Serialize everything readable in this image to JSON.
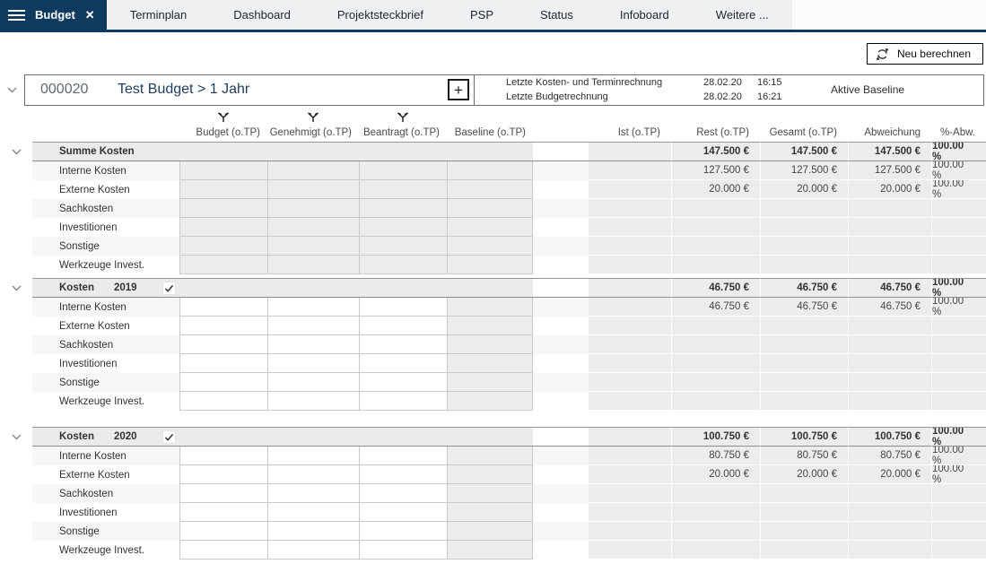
{
  "tabbar": {
    "active_tab": "Budget",
    "close_icon": "✕",
    "tabs": [
      "Terminplan",
      "Dashboard",
      "Projektsteckbrief",
      "PSP",
      "Status",
      "Infoboard",
      "Weitere ..."
    ]
  },
  "toolbar": {
    "recalculate_label": "Neu berechnen"
  },
  "project": {
    "number": "000020",
    "title": "Test Budget > 1 Jahr",
    "add_button": "+",
    "info": [
      {
        "label": "Letzte Kosten- und Terminrechnung",
        "date": "28.02.20",
        "time": "16:15"
      },
      {
        "label": "Letzte Budgetrechnung",
        "date": "28.02.20",
        "time": "16:21"
      }
    ],
    "baseline_label": "Aktive Baseline"
  },
  "colors": {
    "accent": "#0e3a5f",
    "group_row": "#ebebeb",
    "readonly_cell": "#ececec"
  },
  "table": {
    "left_columns": [
      {
        "label": "Budget (o.TP)",
        "filter": true
      },
      {
        "label": "Genehmigt (o.TP)",
        "filter": true
      },
      {
        "label": "Beantragt (o.TP)",
        "filter": true
      },
      {
        "label": "Baseline (o.TP)",
        "filter": false
      }
    ],
    "right_columns": [
      "Ist (o.TP)",
      "Rest (o.TP)",
      "Gesamt (o.TP)",
      "Abweichung",
      "%-Abw."
    ],
    "groups": [
      {
        "label": "Summe Kosten",
        "year": "",
        "has_checkbox": false,
        "editable": false,
        "totals": [
          "",
          "147.500 €",
          "147.500 €",
          "147.500 €",
          "100.00 %"
        ],
        "rows": [
          {
            "label": "Interne Kosten",
            "values": [
              "",
              "127.500 €",
              "127.500 €",
              "127.500 €",
              "100.00 %"
            ]
          },
          {
            "label": "Externe Kosten",
            "values": [
              "",
              "20.000 €",
              "20.000 €",
              "20.000 €",
              "100.00 %"
            ]
          },
          {
            "label": "Sachkosten",
            "values": [
              "",
              "",
              "",
              "",
              ""
            ]
          },
          {
            "label": "Investitionen",
            "values": [
              "",
              "",
              "",
              "",
              ""
            ]
          },
          {
            "label": "Sonstige",
            "values": [
              "",
              "",
              "",
              "",
              ""
            ]
          },
          {
            "label": "Werkzeuge Invest.",
            "values": [
              "",
              "",
              "",
              "",
              ""
            ]
          }
        ]
      },
      {
        "label": "Kosten",
        "year": "2019",
        "has_checkbox": true,
        "editable": true,
        "totals": [
          "",
          "46.750 €",
          "46.750 €",
          "46.750 €",
          "100.00 %"
        ],
        "rows": [
          {
            "label": "Interne Kosten",
            "values": [
              "",
              "46.750 €",
              "46.750 €",
              "46.750 €",
              "100.00 %"
            ]
          },
          {
            "label": "Externe Kosten",
            "values": [
              "",
              "",
              "",
              "",
              ""
            ]
          },
          {
            "label": "Sachkosten",
            "values": [
              "",
              "",
              "",
              "",
              ""
            ]
          },
          {
            "label": "Investitionen",
            "values": [
              "",
              "",
              "",
              "",
              ""
            ]
          },
          {
            "label": "Sonstige",
            "values": [
              "",
              "",
              "",
              "",
              ""
            ]
          },
          {
            "label": "Werkzeuge Invest.",
            "values": [
              "",
              "",
              "",
              "",
              ""
            ]
          }
        ]
      },
      {
        "label": "Kosten",
        "year": "2020",
        "has_checkbox": true,
        "editable": true,
        "totals": [
          "",
          "100.750 €",
          "100.750 €",
          "100.750 €",
          "100.00 %"
        ],
        "rows": [
          {
            "label": "Interne Kosten",
            "values": [
              "",
              "80.750 €",
              "80.750 €",
              "80.750 €",
              "100.00 %"
            ]
          },
          {
            "label": "Externe Kosten",
            "values": [
              "",
              "20.000 €",
              "20.000 €",
              "20.000 €",
              "100.00 %"
            ]
          },
          {
            "label": "Sachkosten",
            "values": [
              "",
              "",
              "",
              "",
              ""
            ]
          },
          {
            "label": "Investitionen",
            "values": [
              "",
              "",
              "",
              "",
              ""
            ]
          },
          {
            "label": "Sonstige",
            "values": [
              "",
              "",
              "",
              "",
              ""
            ]
          },
          {
            "label": "Werkzeuge Invest.",
            "values": [
              "",
              "",
              "",
              "",
              ""
            ]
          }
        ]
      }
    ]
  }
}
